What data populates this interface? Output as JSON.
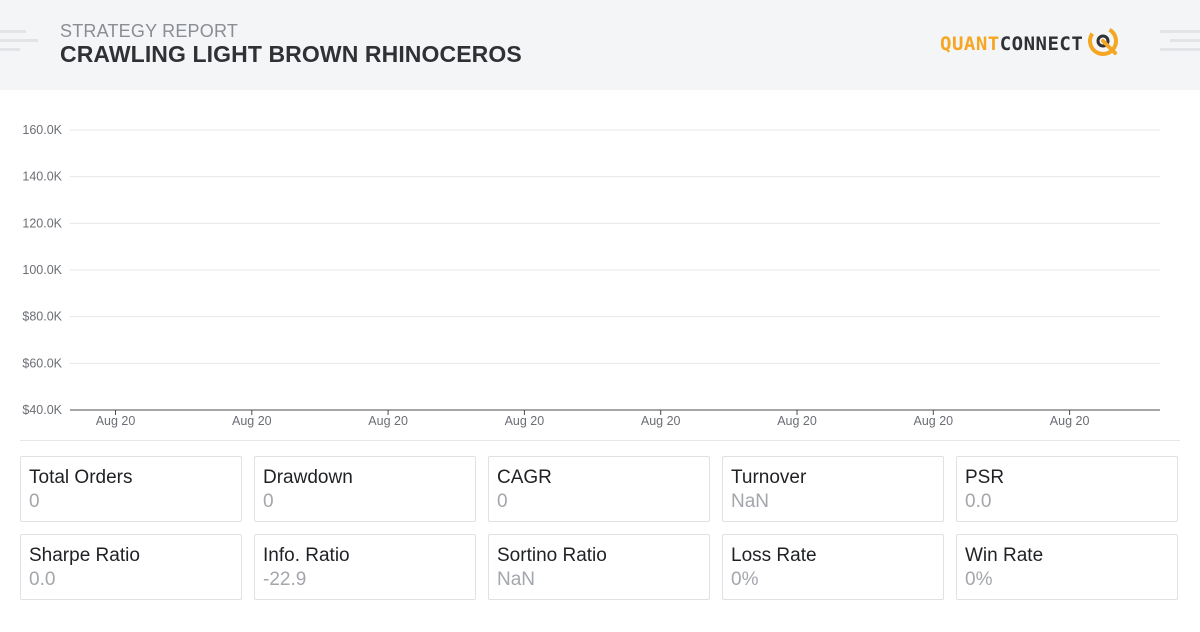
{
  "header": {
    "subtitle": "STRATEGY REPORT",
    "title": "CRAWLING LIGHT BROWN RHINOCEROS",
    "logo": {
      "quant": "QUANT",
      "connect": "CONNECT"
    },
    "accent_color": "#f5a623"
  },
  "chart_data": {
    "type": "line",
    "title": "",
    "xlabel": "",
    "ylabel": "",
    "y_ticks": [
      "160.0K",
      "140.0K",
      "120.0K",
      "100.0K",
      "$80.0K",
      "$60.0K",
      "$40.0K"
    ],
    "x_ticks": [
      "Aug 20",
      "Aug 20",
      "Aug 20",
      "Aug 20",
      "Aug 20",
      "Aug 20",
      "Aug 20",
      "Aug 20"
    ],
    "ylim": [
      40000,
      160000
    ],
    "grid": true,
    "series": []
  },
  "stats": [
    {
      "label": "Total Orders",
      "value": "0"
    },
    {
      "label": "Drawdown",
      "value": "0"
    },
    {
      "label": "CAGR",
      "value": "0"
    },
    {
      "label": "Turnover",
      "value": "NaN"
    },
    {
      "label": "PSR",
      "value": "0.0"
    },
    {
      "label": "Sharpe Ratio",
      "value": "0.0"
    },
    {
      "label": "Info. Ratio",
      "value": "-22.9"
    },
    {
      "label": "Sortino Ratio",
      "value": "NaN"
    },
    {
      "label": "Loss Rate",
      "value": "0%"
    },
    {
      "label": "Win Rate",
      "value": "0%"
    }
  ]
}
